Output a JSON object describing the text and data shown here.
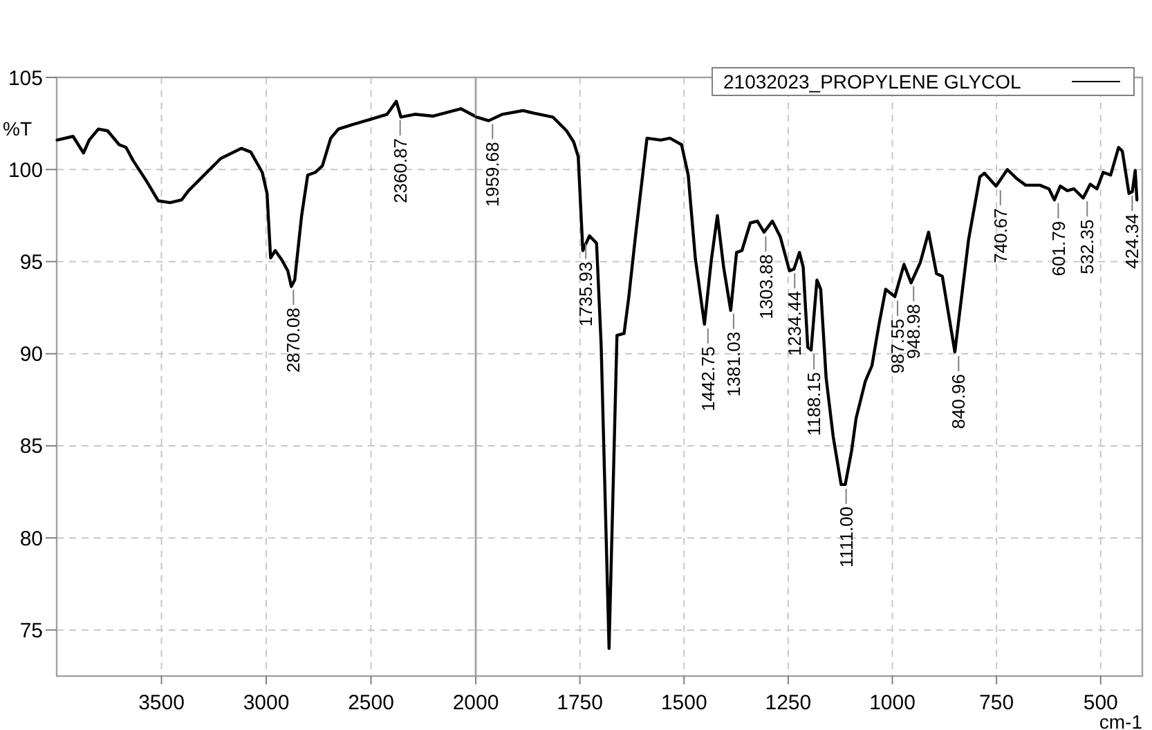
{
  "chart_data": [
    {
      "type": "line",
      "ylabel": "%T",
      "xlim": [
        4000,
        2000
      ],
      "xticks": [
        3500,
        3000,
        2500
      ],
      "ylim": [
        72.5,
        105
      ],
      "yticks": [
        75,
        80,
        85,
        90,
        95,
        100,
        105
      ],
      "grid": true,
      "line_style": "solid",
      "series": [
        {
          "color": "#000000",
          "x": [
            3998,
            3922,
            3872,
            3845,
            3801,
            3757,
            3702,
            3669,
            3636,
            3570,
            3515,
            3459,
            3404,
            3371,
            3305,
            3217,
            3118,
            3074,
            3019,
            2996,
            2979,
            2957,
            2926,
            2897,
            2880,
            2864,
            2831,
            2802,
            2765,
            2732,
            2692,
            2655,
            2600,
            2511,
            2423,
            2379,
            2357,
            2291,
            2203,
            2071,
            2004
          ],
          "values": [
            101.6,
            101.8,
            100.9,
            101.6,
            102.2,
            102.1,
            101.35,
            101.2,
            100.5,
            99.35,
            98.3,
            98.2,
            98.35,
            98.85,
            99.6,
            100.6,
            101.15,
            100.95,
            99.85,
            98.7,
            95.2,
            95.6,
            95.1,
            94.5,
            93.65,
            94.0,
            97.5,
            99.7,
            99.85,
            100.2,
            101.7,
            102.2,
            102.4,
            102.7,
            103.0,
            103.7,
            102.85,
            103.0,
            102.9,
            103.3,
            102.9
          ]
        }
      ],
      "annotations": [
        {
          "text": "2870.08",
          "x": 2870.08,
          "y": 93.7
        },
        {
          "text": "2360.87",
          "x": 2360.87,
          "y": 102.9
        }
      ]
    },
    {
      "type": "line",
      "xlabel": "cm-1",
      "xlim": [
        2000,
        400
      ],
      "xticks": [
        2000,
        1750,
        1500,
        1250,
        1000,
        750,
        500
      ],
      "ylim": [
        72.5,
        105
      ],
      "yticks": [
        75,
        80,
        85,
        90,
        95,
        100,
        105
      ],
      "grid": true,
      "legend": "top right",
      "line_style": "solid",
      "tick_labels": "x",
      "series": [
        {
          "name": "21032023_PROPYLENE GLYCOL",
          "color": "#000000",
          "x": [
            1998,
            1969,
            1936,
            1887,
            1859,
            1815,
            1782,
            1765,
            1754,
            1743,
            1727,
            1710,
            1699,
            1680,
            1661,
            1644,
            1633,
            1616,
            1589,
            1556,
            1534,
            1506,
            1490,
            1473,
            1451,
            1435,
            1420,
            1405,
            1388,
            1374,
            1361,
            1341,
            1324,
            1308,
            1288,
            1269,
            1247,
            1236,
            1223,
            1214,
            1203,
            1195,
            1181,
            1172,
            1159,
            1142,
            1123,
            1113,
            1098,
            1087,
            1065,
            1049,
            1032,
            1016,
            994,
            972,
            955,
            933,
            913,
            894,
            880,
            850,
            817,
            790,
            779,
            751,
            724,
            701,
            680,
            646,
            624,
            611,
            597,
            580,
            564,
            542,
            525,
            509,
            494,
            476,
            457,
            448,
            432,
            424,
            417,
            413
          ],
          "values": [
            102.85,
            102.65,
            103.0,
            103.2,
            103.05,
            102.85,
            102.1,
            101.5,
            100.7,
            95.6,
            96.4,
            96.0,
            90.5,
            74.0,
            91.0,
            91.1,
            93.0,
            96.5,
            101.7,
            101.6,
            101.7,
            101.35,
            99.7,
            95.2,
            91.6,
            95.0,
            97.5,
            94.7,
            92.35,
            95.5,
            95.6,
            97.1,
            97.2,
            96.6,
            97.2,
            96.35,
            94.5,
            94.6,
            95.5,
            94.7,
            90.35,
            90.2,
            94.0,
            93.5,
            88.7,
            85.5,
            82.9,
            82.9,
            84.7,
            86.5,
            88.5,
            89.35,
            91.6,
            93.5,
            93.1,
            94.85,
            93.85,
            94.95,
            96.6,
            94.35,
            94.2,
            90.1,
            96.2,
            99.6,
            99.8,
            99.1,
            100.0,
            99.5,
            99.15,
            99.15,
            98.95,
            98.35,
            99.1,
            98.85,
            98.95,
            98.45,
            99.2,
            98.95,
            99.85,
            99.7,
            101.2,
            101.0,
            98.7,
            98.8,
            99.95,
            98.35
          ]
        }
      ],
      "annotations": [
        {
          "text": "1959.68",
          "x": 1959.68,
          "y": 102.7
        },
        {
          "text": "1735.93",
          "x": 1735.93,
          "y": 96.2
        },
        {
          "text": "1442.75",
          "x": 1442.75,
          "y": 91.6
        },
        {
          "text": "1381.03",
          "x": 1381.03,
          "y": 92.4
        },
        {
          "text": "1303.88",
          "x": 1303.88,
          "y": 96.6
        },
        {
          "text": "1234.44",
          "x": 1234.44,
          "y": 94.6
        },
        {
          "text": "1188.15",
          "x": 1188.15,
          "y": 90.2
        },
        {
          "text": "1111.00",
          "x": 1111.0,
          "y": 82.9
        },
        {
          "text": "987.55",
          "x": 987.55,
          "y": 93.1
        },
        {
          "text": "948.98",
          "x": 948.98,
          "y": 93.9
        },
        {
          "text": "840.96",
          "x": 840.96,
          "y": 90.1
        },
        {
          "text": "740.67",
          "x": 740.67,
          "y": 99.1
        },
        {
          "text": "601.79",
          "x": 601.79,
          "y": 98.4
        },
        {
          "text": "532.35",
          "x": 532.35,
          "y": 98.5
        },
        {
          "text": "424.34",
          "x": 424.34,
          "y": 98.8
        }
      ]
    }
  ]
}
